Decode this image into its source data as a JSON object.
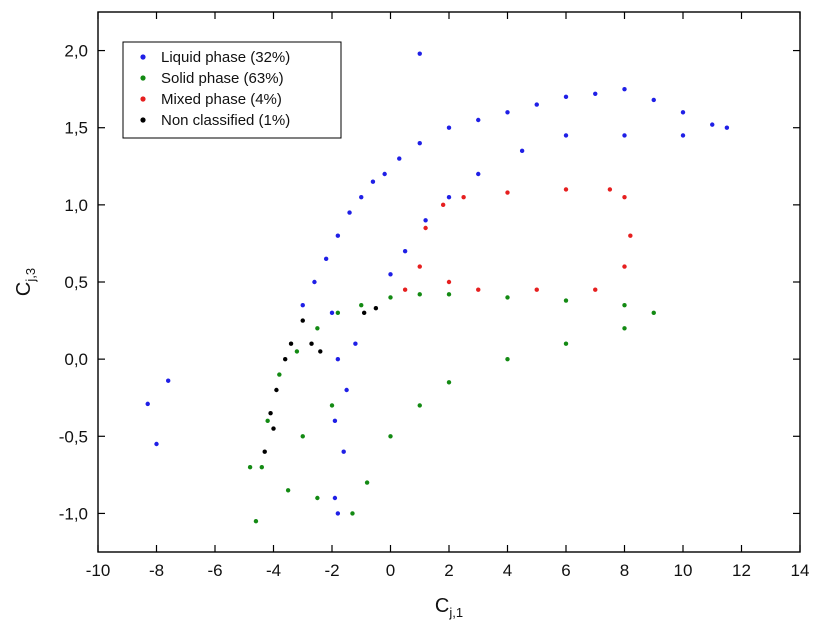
{
  "chart_data": {
    "type": "scatter",
    "xlabel": "C",
    "xlabel_sub": "j,1",
    "ylabel": "C",
    "ylabel_sub": "j,3",
    "xlim": [
      -10,
      14
    ],
    "ylim": [
      -1.25,
      2.25
    ],
    "xticks": [
      -10,
      -8,
      -6,
      -4,
      -2,
      0,
      2,
      4,
      6,
      8,
      10,
      12,
      14
    ],
    "xtick_labels": [
      "-10",
      "-8",
      "-6",
      "-4",
      "-2",
      "0",
      "2",
      "4",
      "6",
      "8",
      "10",
      "12",
      "14"
    ],
    "yticks": [
      -1.0,
      -0.5,
      0.0,
      0.5,
      1.0,
      1.5,
      2.0
    ],
    "ytick_labels": [
      "-1,0",
      "-0,5",
      "0,0",
      "0,5",
      "1,0",
      "1,5",
      "2,0"
    ],
    "grid": false,
    "legend_position": "top-left",
    "series": [
      {
        "name": "Liquid phase (32%)",
        "color": "#1f1fe6",
        "points": [
          [
            -3.0,
            0.35
          ],
          [
            -2.6,
            0.5
          ],
          [
            -2.2,
            0.65
          ],
          [
            -1.8,
            0.8
          ],
          [
            -1.4,
            0.95
          ],
          [
            -1.0,
            1.05
          ],
          [
            -0.6,
            1.15
          ],
          [
            -0.2,
            1.2
          ],
          [
            0.3,
            1.3
          ],
          [
            1.0,
            1.4
          ],
          [
            2.0,
            1.5
          ],
          [
            3.0,
            1.55
          ],
          [
            4.0,
            1.6
          ],
          [
            5.0,
            1.65
          ],
          [
            6.0,
            1.7
          ],
          [
            7.0,
            1.72
          ],
          [
            8.0,
            1.75
          ],
          [
            9.0,
            1.68
          ],
          [
            10.0,
            1.6
          ],
          [
            11.0,
            1.52
          ],
          [
            11.5,
            1.5
          ],
          [
            10.0,
            1.45
          ],
          [
            8.0,
            1.45
          ],
          [
            6.0,
            1.45
          ],
          [
            4.5,
            1.35
          ],
          [
            3.0,
            1.2
          ],
          [
            2.0,
            1.05
          ],
          [
            1.2,
            0.9
          ],
          [
            0.5,
            0.7
          ],
          [
            0.0,
            0.55
          ],
          [
            -2.0,
            0.3
          ],
          [
            -1.8,
            0.0
          ],
          [
            -1.9,
            -0.4
          ],
          [
            -1.9,
            -0.9
          ],
          [
            -1.8,
            -1.0
          ],
          [
            -1.6,
            -0.6
          ],
          [
            -1.5,
            -0.2
          ],
          [
            -1.2,
            0.1
          ],
          [
            -8.3,
            -0.29
          ],
          [
            -8.0,
            -0.55
          ],
          [
            -7.6,
            -0.14
          ],
          [
            1.0,
            1.98
          ]
        ]
      },
      {
        "name": "Solid phase (63%)",
        "color": "#138a13",
        "points": [
          [
            -4.6,
            -1.05
          ],
          [
            -4.4,
            -0.7
          ],
          [
            -4.2,
            -0.4
          ],
          [
            -3.8,
            -0.1
          ],
          [
            -3.2,
            0.05
          ],
          [
            -2.5,
            0.2
          ],
          [
            -1.8,
            0.3
          ],
          [
            -1.0,
            0.35
          ],
          [
            0.0,
            0.4
          ],
          [
            1.0,
            0.42
          ],
          [
            2.0,
            0.42
          ],
          [
            4.0,
            0.4
          ],
          [
            6.0,
            0.38
          ],
          [
            8.0,
            0.35
          ],
          [
            9.0,
            0.3
          ],
          [
            8.0,
            0.2
          ],
          [
            6.0,
            0.1
          ],
          [
            4.0,
            0.0
          ],
          [
            2.0,
            -0.15
          ],
          [
            1.0,
            -0.3
          ],
          [
            0.0,
            -0.5
          ],
          [
            -0.8,
            -0.8
          ],
          [
            -1.3,
            -1.0
          ],
          [
            -2.5,
            -0.9
          ],
          [
            -3.5,
            -0.85
          ],
          [
            -4.8,
            -0.7
          ],
          [
            -3.0,
            -0.5
          ],
          [
            -2.0,
            -0.3
          ]
        ]
      },
      {
        "name": "Mixed phase (4%)",
        "color": "#e61f1f",
        "points": [
          [
            0.5,
            0.45
          ],
          [
            1.0,
            0.6
          ],
          [
            1.2,
            0.85
          ],
          [
            1.8,
            1.0
          ],
          [
            2.5,
            1.05
          ],
          [
            4.0,
            1.08
          ],
          [
            6.0,
            1.1
          ],
          [
            7.5,
            1.1
          ],
          [
            8.0,
            1.05
          ],
          [
            8.2,
            0.8
          ],
          [
            8.0,
            0.6
          ],
          [
            7.0,
            0.45
          ],
          [
            5.0,
            0.45
          ],
          [
            3.0,
            0.45
          ],
          [
            2.0,
            0.5
          ]
        ]
      },
      {
        "name": "Non classified (1%)",
        "color": "#000000",
        "points": [
          [
            -4.3,
            -0.6
          ],
          [
            -4.1,
            -0.35
          ],
          [
            -3.9,
            -0.2
          ],
          [
            -3.6,
            0.0
          ],
          [
            -3.0,
            0.25
          ],
          [
            -2.7,
            0.1
          ],
          [
            -2.4,
            0.05
          ],
          [
            -0.9,
            0.3
          ],
          [
            -0.5,
            0.33
          ],
          [
            -4.0,
            -0.45
          ],
          [
            -3.4,
            0.1
          ]
        ]
      }
    ]
  }
}
